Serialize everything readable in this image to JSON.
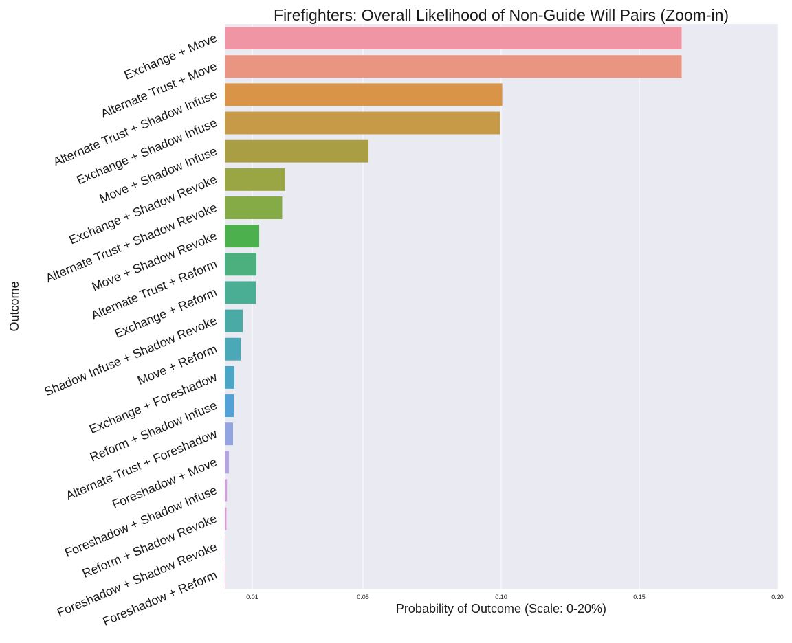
{
  "chart_data": {
    "type": "bar",
    "orientation": "horizontal",
    "title": "Firefighters: Overall Likelihood of Non-Guide Will Pairs (Zoom-in)",
    "xlabel": "Probability of Outcome (Scale: 0-20%)",
    "ylabel": "Outcome",
    "x_ticks": [
      {
        "value": 0.01,
        "label": "0.01"
      },
      {
        "value": 0.05,
        "label": "0.05"
      },
      {
        "value": 0.1,
        "label": "0.10"
      },
      {
        "value": 0.15,
        "label": "0.15"
      },
      {
        "value": 0.2,
        "label": "0.20"
      }
    ],
    "xlim": [
      0.0,
      0.2
    ],
    "grid": true,
    "categories": [
      "Exchange + Move",
      "Alternate Trust + Move",
      "Alternate Trust + Shadow Infuse",
      "Exchange + Shadow Infuse",
      "Move + Shadow Infuse",
      "Exchange + Shadow Revoke",
      "Alternate Trust + Shadow Revoke",
      "Move + Shadow Revoke",
      "Alternate Trust + Reform",
      "Exchange + Reform",
      "Shadow Infuse + Shadow Revoke",
      "Move + Reform",
      "Exchange + Foreshadow",
      "Reform + Shadow Infuse",
      "Alternate Trust + Foreshadow",
      "Foreshadow + Move",
      "Foreshadow + Shadow Infuse",
      "Reform + Shadow Revoke",
      "Foreshadow + Shadow Revoke",
      "Foreshadow + Reform"
    ],
    "values": [
      0.1653,
      0.1653,
      0.1004,
      0.0996,
      0.052,
      0.0218,
      0.0208,
      0.0125,
      0.0115,
      0.0113,
      0.0065,
      0.0058,
      0.0035,
      0.0033,
      0.003,
      0.0015,
      0.0008,
      0.0006,
      0.0001,
      0.0001
    ],
    "colors": [
      "#ef95a3",
      "#ea9581",
      "#d99447",
      "#c69a46",
      "#a99e43",
      "#9aa544",
      "#84ab45",
      "#4cb14c",
      "#4bb07d",
      "#4aae94",
      "#4aaaa6",
      "#4ba8b6",
      "#4ba5c4",
      "#52a2d8",
      "#92a5e2",
      "#b3a5e1",
      "#d19fdd",
      "#e097d8",
      "#ee95c2",
      "#ef95b0"
    ]
  }
}
